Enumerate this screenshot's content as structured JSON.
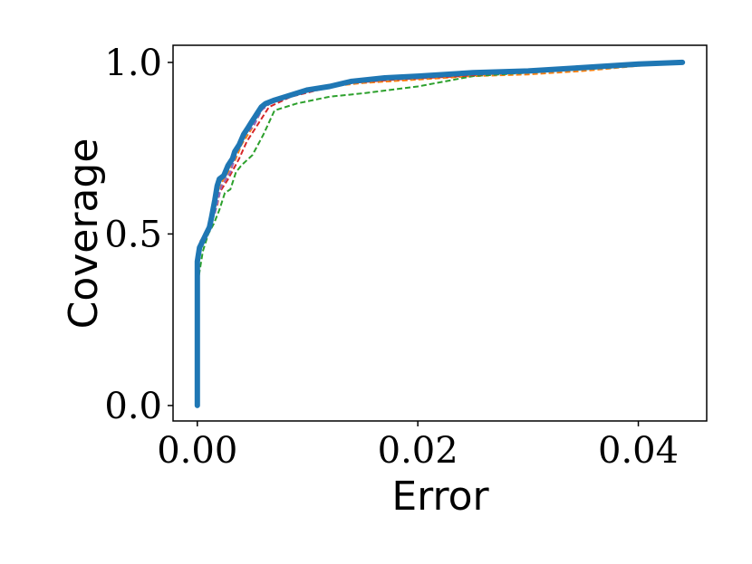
{
  "chart_data": {
    "type": "line",
    "title": "",
    "xlabel": "Error",
    "ylabel": "Coverage",
    "xlim": [
      -0.0022,
      0.0462
    ],
    "ylim": [
      -0.045,
      1.05
    ],
    "xticks": [
      0.0,
      0.02,
      0.04
    ],
    "xtick_labels": [
      "0.00",
      "0.02",
      "0.04"
    ],
    "yticks": [
      0.0,
      0.5,
      1.0
    ],
    "ytick_labels": [
      "0.0",
      "0.5",
      "1.0"
    ],
    "grid": false,
    "series": [
      {
        "color": "#ff7f0e",
        "style": "dashed",
        "x": [
          0,
          0,
          0.0003,
          0.0008,
          0.0012,
          0.0018,
          0.0022,
          0.003,
          0.0035,
          0.004,
          0.005,
          0.006,
          0.007,
          0.009,
          0.012,
          0.015,
          0.02,
          0.025,
          0.03,
          0.035,
          0.04,
          0.044
        ],
        "y": [
          0,
          0.42,
          0.47,
          0.5,
          0.54,
          0.58,
          0.65,
          0.69,
          0.72,
          0.76,
          0.81,
          0.87,
          0.89,
          0.91,
          0.93,
          0.94,
          0.95,
          0.96,
          0.965,
          0.975,
          0.99,
          1.0
        ]
      },
      {
        "color": "#2ca02c",
        "style": "dashed",
        "x": [
          0,
          0,
          0.0005,
          0.001,
          0.0015,
          0.002,
          0.0025,
          0.003,
          0.0035,
          0.004,
          0.005,
          0.006,
          0.007,
          0.009,
          0.012,
          0.015,
          0.02,
          0.025,
          0.03,
          0.035,
          0.04,
          0.044
        ],
        "y": [
          0,
          0.35,
          0.45,
          0.5,
          0.53,
          0.57,
          0.62,
          0.63,
          0.68,
          0.7,
          0.73,
          0.79,
          0.86,
          0.88,
          0.9,
          0.91,
          0.93,
          0.96,
          0.97,
          0.98,
          0.99,
          1.0
        ]
      },
      {
        "color": "#d62728",
        "style": "dashed",
        "x": [
          0,
          0,
          0.0003,
          0.0007,
          0.0012,
          0.0016,
          0.002,
          0.0028,
          0.0033,
          0.0038,
          0.0045,
          0.0055,
          0.0065,
          0.0085,
          0.011,
          0.014,
          0.018,
          0.024,
          0.03,
          0.036,
          0.044
        ],
        "y": [
          0,
          0.4,
          0.48,
          0.5,
          0.53,
          0.57,
          0.62,
          0.66,
          0.69,
          0.72,
          0.77,
          0.82,
          0.87,
          0.9,
          0.92,
          0.94,
          0.95,
          0.96,
          0.975,
          0.985,
          1.0
        ]
      },
      {
        "color": "#9467bd",
        "style": "dashed",
        "x": [
          0,
          0,
          0.0004,
          0.001,
          0.0016,
          0.0022,
          0.003,
          0.0036,
          0.0044,
          0.0052,
          0.0058,
          0.007,
          0.009,
          0.012,
          0.016,
          0.022,
          0.03,
          0.038,
          0.044
        ],
        "y": [
          0,
          0.43,
          0.47,
          0.51,
          0.56,
          0.64,
          0.68,
          0.74,
          0.79,
          0.82,
          0.86,
          0.89,
          0.91,
          0.93,
          0.95,
          0.96,
          0.975,
          0.99,
          1.0
        ]
      },
      {
        "color": "#1f77b4",
        "style": "solid",
        "x": [
          0,
          0,
          0.0002,
          0.0005,
          0.0008,
          0.0011,
          0.0013,
          0.0016,
          0.0018,
          0.002,
          0.0024,
          0.0028,
          0.0032,
          0.0034,
          0.0038,
          0.0042,
          0.0046,
          0.005,
          0.0054,
          0.0058,
          0.0062,
          0.007,
          0.008,
          0.01,
          0.012,
          0.014,
          0.017,
          0.02,
          0.025,
          0.03,
          0.035,
          0.04,
          0.044
        ],
        "y": [
          0,
          0.42,
          0.46,
          0.48,
          0.5,
          0.52,
          0.55,
          0.6,
          0.64,
          0.66,
          0.67,
          0.7,
          0.72,
          0.74,
          0.76,
          0.79,
          0.81,
          0.83,
          0.85,
          0.87,
          0.88,
          0.89,
          0.9,
          0.92,
          0.93,
          0.945,
          0.955,
          0.96,
          0.97,
          0.975,
          0.985,
          0.995,
          1.0
        ]
      }
    ]
  }
}
